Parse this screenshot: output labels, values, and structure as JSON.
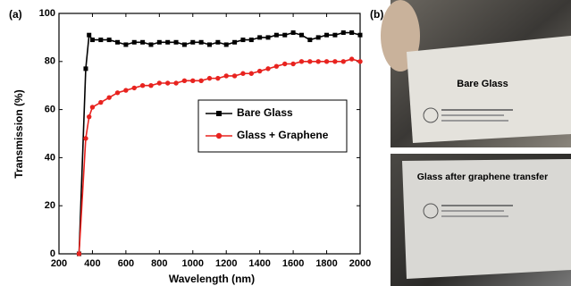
{
  "chart_data": {
    "type": "line",
    "x_label": "Wavelength (nm)",
    "y_label": "Transmission (%)",
    "x": [
      320,
      360,
      380,
      400,
      450,
      500,
      550,
      600,
      650,
      700,
      750,
      800,
      850,
      900,
      950,
      1000,
      1050,
      1100,
      1150,
      1200,
      1250,
      1300,
      1350,
      1400,
      1450,
      1500,
      1550,
      1600,
      1650,
      1700,
      1750,
      1800,
      1850,
      1900,
      1950,
      2000
    ],
    "series": [
      {
        "name": "Bare Glass",
        "color": "#000000",
        "marker": "square",
        "values": [
          0,
          77,
          91,
          89,
          89,
          89,
          88,
          87,
          88,
          88,
          87,
          88,
          88,
          88,
          87,
          88,
          88,
          87,
          88,
          87,
          88,
          89,
          89,
          90,
          90,
          91,
          91,
          92,
          91,
          89,
          90,
          91,
          91,
          92,
          92,
          91
        ]
      },
      {
        "name": "Glass + Graphene",
        "color": "#e8231f",
        "marker": "circle",
        "values": [
          0,
          48,
          57,
          61,
          63,
          65,
          67,
          68,
          69,
          70,
          70,
          71,
          71,
          71,
          72,
          72,
          72,
          73,
          73,
          74,
          74,
          75,
          75,
          76,
          77,
          78,
          79,
          79,
          80,
          80,
          80,
          80,
          80,
          80,
          81,
          80
        ]
      }
    ],
    "xlim": [
      200,
      2000
    ],
    "xticks": [
      200,
      400,
      600,
      800,
      1000,
      1200,
      1400,
      1600,
      1800,
      2000
    ],
    "ylim": [
      0,
      100
    ],
    "yticks": [
      0,
      20,
      40,
      60,
      80,
      100
    ],
    "legend": "center right"
  },
  "panel_labels": [
    "(a)",
    "(b)"
  ],
  "photos": [
    {
      "caption": "Bare Glass"
    },
    {
      "caption": "Glass after graphene transfer"
    }
  ]
}
